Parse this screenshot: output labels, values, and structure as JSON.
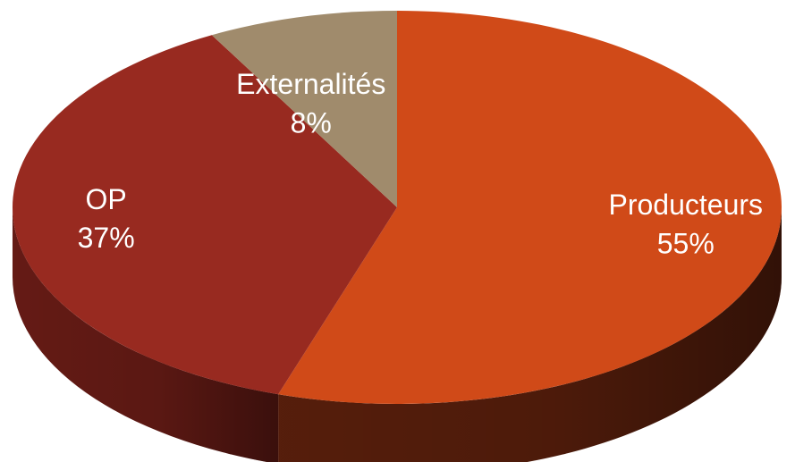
{
  "chart_data": {
    "type": "pie",
    "style": "3d",
    "title": "",
    "slices": [
      {
        "label": "Producteurs",
        "value": 55,
        "value_label": "55%",
        "color": "#D04A18",
        "side_color": "#5A1F0C"
      },
      {
        "label": "OP",
        "value": 37,
        "value_label": "37%",
        "color": "#982A20",
        "side_color": "#6A1C16"
      },
      {
        "label": "Externalités",
        "value": 8,
        "value_label": "8%",
        "color": "#A08B6C",
        "side_color": "#6E5E48"
      }
    ],
    "legend": "none"
  }
}
